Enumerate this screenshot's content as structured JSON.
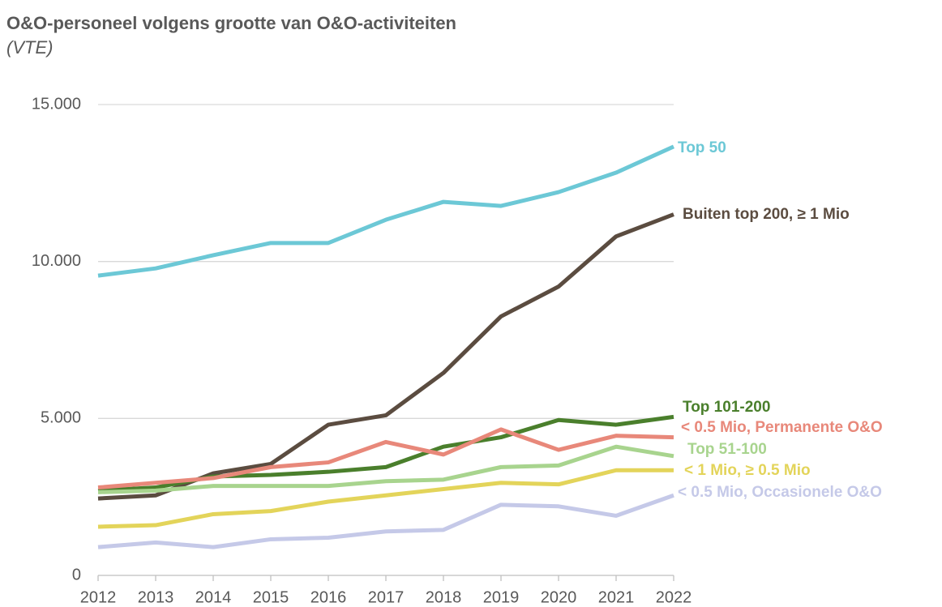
{
  "chart_data": {
    "type": "line",
    "title": "O&O-personeel volgens grootte van O&O-activiteiten",
    "subtitle": "(VTE)",
    "x": [
      2012,
      2013,
      2014,
      2015,
      2016,
      2017,
      2018,
      2019,
      2020,
      2021,
      2022
    ],
    "xlim": [
      2012,
      2022
    ],
    "xticks": [
      2012,
      2013,
      2014,
      2015,
      2016,
      2017,
      2018,
      2019,
      2020,
      2021,
      2022
    ],
    "ylim": [
      0,
      15000
    ],
    "yticks": [
      0,
      {
        "value": 5000,
        "label": "5.000"
      },
      {
        "value": 10000,
        "label": "10.000"
      },
      {
        "value": 15000,
        "label": "15.000"
      }
    ],
    "grid": true,
    "series": [
      {
        "name": "Top 50",
        "color": "#6cc8d6",
        "values": [
          9550,
          9780,
          10200,
          10590,
          10590,
          11330,
          11900,
          11770,
          12210,
          12830,
          13660
        ]
      },
      {
        "name": "Buiten top 200, ≥ 1 Mio",
        "color": "#5b4c40",
        "values": [
          2450,
          2550,
          3250,
          3550,
          4800,
          5100,
          6450,
          8250,
          9200,
          10800,
          11500
        ]
      },
      {
        "name": "Top 101-200",
        "color": "#4a7f2c",
        "values": [
          2700,
          2800,
          3150,
          3200,
          3300,
          3450,
          4100,
          4400,
          4950,
          4800,
          5050
        ]
      },
      {
        "name": "< 0.5 Mio, Permanente O&O",
        "color": "#e8887a",
        "values": [
          2800,
          2950,
          3100,
          3450,
          3600,
          4250,
          3850,
          4650,
          4000,
          4450,
          4400
        ]
      },
      {
        "name": "Top 51-100",
        "color": "#a8d48e",
        "values": [
          2650,
          2700,
          2850,
          2850,
          2850,
          3000,
          3050,
          3450,
          3500,
          4100,
          3800
        ]
      },
      {
        "name": "< 1 Mio,  ≥ 0.5 Mio",
        "color": "#e3d45a",
        "values": [
          1550,
          1600,
          1950,
          2050,
          2350,
          2550,
          2750,
          2950,
          2900,
          3350,
          3350
        ]
      },
      {
        "name": "< 0.5 Mio, Occasionele O&O",
        "color": "#c5c9e8",
        "values": [
          900,
          1050,
          900,
          1150,
          1200,
          1400,
          1450,
          2250,
          2200,
          1900,
          2550
        ]
      }
    ]
  }
}
